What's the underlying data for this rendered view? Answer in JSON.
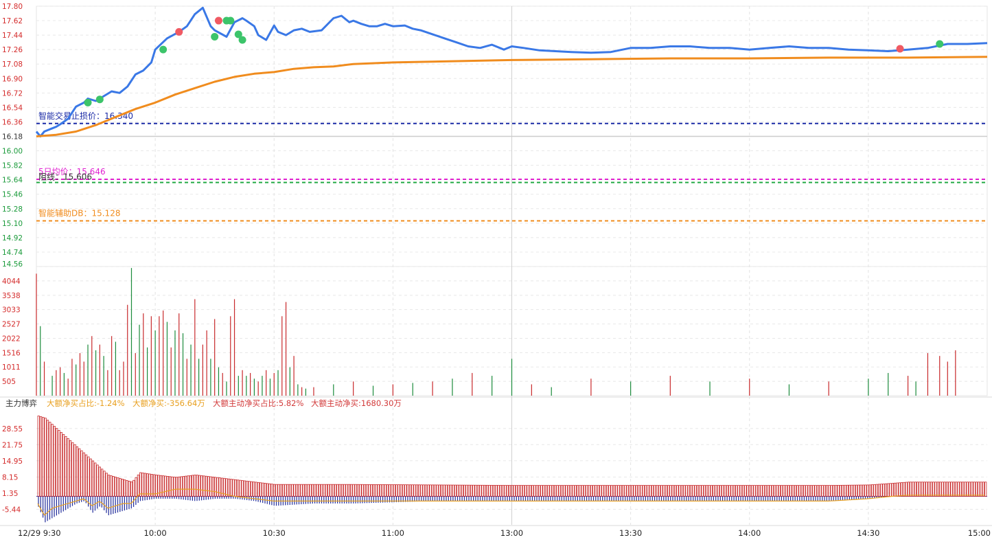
{
  "chart_data": [
    {
      "type": "line",
      "panel": "price",
      "ylim": [
        14.56,
        17.8
      ],
      "price_ticks": [
        "17.80",
        "17.62",
        "17.44",
        "17.26",
        "17.08",
        "16.90",
        "16.72",
        "16.54",
        "16.36",
        "16.18",
        "16.00",
        "15.82",
        "15.64",
        "15.46",
        "15.28",
        "15.10",
        "14.92",
        "14.74",
        "14.56"
      ],
      "prev_close": 16.18,
      "x_ticks": [
        "12/29 9:30",
        "10:00",
        "10:30",
        "11:00",
        "13:00",
        "13:30",
        "14:00",
        "14:30",
        "15:00"
      ],
      "series": [
        {
          "color": "#3a78e6",
          "x": [
            0,
            1,
            2,
            3,
            4,
            5,
            6,
            8,
            10,
            12,
            13,
            15,
            17,
            19,
            21,
            23,
            25,
            27,
            29,
            30,
            33,
            36,
            38,
            40,
            42,
            44,
            45,
            48,
            50,
            52,
            53,
            55,
            56,
            58,
            60,
            61,
            63,
            65,
            67,
            69,
            72,
            75,
            77,
            79,
            80,
            82,
            84,
            86,
            88,
            90,
            93,
            95,
            97,
            100,
            103,
            106,
            109,
            112,
            115,
            118,
            120,
            123,
            127,
            131,
            135,
            140,
            145,
            150,
            155,
            160,
            165,
            170,
            175,
            180,
            185,
            190,
            195,
            200,
            205,
            210,
            215,
            220,
            225,
            230,
            235,
            240
          ],
          "values": [
            16.24,
            16.18,
            16.24,
            16.26,
            16.28,
            16.3,
            16.33,
            16.4,
            16.55,
            16.6,
            16.65,
            16.62,
            16.68,
            16.74,
            16.72,
            16.8,
            16.95,
            17.0,
            17.1,
            17.26,
            17.4,
            17.48,
            17.55,
            17.7,
            17.78,
            17.55,
            17.5,
            17.42,
            17.6,
            17.65,
            17.62,
            17.55,
            17.44,
            17.38,
            17.56,
            17.48,
            17.44,
            17.5,
            17.52,
            17.48,
            17.5,
            17.65,
            17.68,
            17.6,
            17.62,
            17.58,
            17.55,
            17.55,
            17.58,
            17.55,
            17.56,
            17.52,
            17.5,
            17.45,
            17.4,
            17.35,
            17.3,
            17.28,
            17.32,
            17.26,
            17.3,
            17.28,
            17.25,
            17.24,
            17.23,
            17.22,
            17.23,
            17.28,
            17.28,
            17.3,
            17.3,
            17.28,
            17.28,
            17.26,
            17.28,
            17.3,
            17.28,
            17.28,
            17.26,
            17.25,
            17.24,
            17.26,
            17.28,
            17.33,
            17.33,
            17.34
          ]
        },
        {
          "color": "#f08c1e",
          "x": [
            0,
            5,
            10,
            15,
            20,
            25,
            30,
            35,
            40,
            45,
            50,
            55,
            60,
            65,
            70,
            75,
            80,
            90,
            100,
            120,
            140,
            160,
            180,
            200,
            220,
            240
          ],
          "values": [
            16.18,
            16.2,
            16.24,
            16.32,
            16.42,
            16.52,
            16.6,
            16.7,
            16.78,
            16.86,
            16.92,
            16.96,
            16.98,
            17.02,
            17.04,
            17.05,
            17.08,
            17.1,
            17.11,
            17.13,
            17.14,
            17.15,
            17.15,
            17.16,
            17.16,
            17.17
          ]
        }
      ],
      "signals": [
        {
          "x": 13,
          "v": 16.6,
          "kind": "buy"
        },
        {
          "x": 16,
          "v": 16.64,
          "kind": "buy"
        },
        {
          "x": 32,
          "v": 17.26,
          "kind": "buy"
        },
        {
          "x": 36,
          "v": 17.48,
          "kind": "sell"
        },
        {
          "x": 45,
          "v": 17.42,
          "kind": "buy"
        },
        {
          "x": 46,
          "v": 17.62,
          "kind": "sell"
        },
        {
          "x": 48,
          "v": 17.62,
          "kind": "buy"
        },
        {
          "x": 49,
          "v": 17.62,
          "kind": "buy"
        },
        {
          "x": 51,
          "v": 17.45,
          "kind": "buy"
        },
        {
          "x": 52,
          "v": 17.38,
          "kind": "buy"
        },
        {
          "x": 218,
          "v": 17.27,
          "kind": "sell"
        },
        {
          "x": 228,
          "v": 17.33,
          "kind": "buy"
        }
      ],
      "ref_lines": [
        {
          "label": "智能交易止损价：16.340",
          "value": 16.34,
          "color": "#1a2aa6",
          "text_color": "#1a2aa6"
        },
        {
          "label": "5日均价：15.646",
          "value": 15.646,
          "color": "#e020d0",
          "text_color": "#e020d0"
        },
        {
          "label": "阻线：15.606",
          "value": 15.606,
          "color": "#22aa44",
          "text_color": "#333333"
        },
        {
          "label": "智能辅助DB：15.128",
          "value": 15.128,
          "color": "#f08c1e",
          "text_color": "#f08c1e"
        }
      ]
    },
    {
      "type": "bar",
      "panel": "volume",
      "ylim": [
        0,
        4550
      ],
      "volume_ticks": [
        "4044",
        "3538",
        "3033",
        "2527",
        "2022",
        "1516",
        "1011",
        "505"
      ],
      "x": [
        0,
        1,
        2,
        4,
        5,
        6,
        7,
        8,
        9,
        10,
        11,
        12,
        13,
        14,
        15,
        16,
        17,
        18,
        19,
        20,
        21,
        22,
        23,
        24,
        25,
        26,
        27,
        28,
        29,
        30,
        31,
        32,
        33,
        34,
        35,
        36,
        37,
        38,
        39,
        40,
        41,
        42,
        43,
        44,
        45,
        46,
        47,
        48,
        49,
        50,
        51,
        52,
        53,
        54,
        55,
        56,
        57,
        58,
        59,
        60,
        61,
        62,
        63,
        64,
        65,
        66,
        67,
        68,
        70,
        75,
        80,
        85,
        90,
        95,
        100,
        105,
        110,
        115,
        120,
        125,
        130,
        140,
        150,
        160,
        170,
        180,
        190,
        200,
        210,
        215,
        220,
        222,
        225,
        228,
        230,
        232
      ],
      "values": [
        4300,
        2450,
        1200,
        700,
        900,
        1000,
        800,
        600,
        1300,
        1100,
        1500,
        1200,
        1800,
        2100,
        1600,
        1800,
        1400,
        900,
        2100,
        1900,
        900,
        1200,
        3200,
        4500,
        1500,
        2500,
        2900,
        1700,
        2800,
        2300,
        2800,
        3000,
        2600,
        1700,
        2300,
        2900,
        2200,
        1300,
        1800,
        3400,
        1300,
        1800,
        2300,
        1300,
        2700,
        1000,
        800,
        500,
        2800,
        3400,
        700,
        900,
        700,
        800,
        600,
        500,
        700,
        900,
        600,
        800,
        900,
        2800,
        3300,
        1000,
        1400,
        400,
        300,
        250,
        300,
        400,
        500,
        350,
        400,
        450,
        500,
        600,
        800,
        700,
        1300,
        400,
        300,
        600,
        500,
        700,
        500,
        600,
        400,
        500,
        600,
        800,
        700,
        500,
        1500,
        1400,
        1200,
        1600
      ],
      "colors": [
        "r",
        "g",
        "r",
        "g",
        "r",
        "r",
        "g",
        "r",
        "r",
        "g",
        "r",
        "r",
        "g",
        "r",
        "g",
        "r",
        "g",
        "r",
        "r",
        "g",
        "r",
        "r",
        "r",
        "g",
        "r",
        "g",
        "r",
        "g",
        "r",
        "g",
        "r",
        "r",
        "g",
        "r",
        "g",
        "r",
        "g",
        "r",
        "g",
        "r",
        "g",
        "r",
        "r",
        "g",
        "r",
        "g",
        "r",
        "g",
        "r",
        "r",
        "g",
        "r",
        "g",
        "r",
        "g",
        "r",
        "g",
        "r",
        "g",
        "r",
        "g",
        "r",
        "r",
        "g",
        "r",
        "g",
        "r",
        "g",
        "r",
        "g",
        "r",
        "g",
        "r",
        "g",
        "r",
        "g",
        "r",
        "g",
        "g",
        "r",
        "g",
        "r",
        "g",
        "r",
        "g",
        "r",
        "g",
        "r",
        "g",
        "g",
        "r",
        "g",
        "r",
        "r",
        "r",
        "r"
      ]
    },
    {
      "type": "bar",
      "panel": "main-force",
      "title": "主力博弈",
      "stats": [
        {
          "text": "大额净买占比:-1.24%",
          "color": "#e8a020"
        },
        {
          "text": "大额净买:-356.64万",
          "color": "#e8a020"
        },
        {
          "text": "大额主动净买占比:5.82%",
          "color": "#d23a3a"
        },
        {
          "text": "大额主动净买:1680.30万",
          "color": "#d23a3a"
        }
      ],
      "ylim": [
        -12,
        36
      ],
      "mf_ticks": [
        "28.55",
        "21.75",
        "14.95",
        "8.15",
        "1.35",
        "-5.44"
      ],
      "red_series": {
        "x": [
          0,
          2,
          4,
          6,
          8,
          10,
          12,
          14,
          16,
          18,
          20,
          22,
          24,
          26,
          30,
          35,
          40,
          45,
          50,
          55,
          60,
          70,
          80,
          100,
          120,
          140,
          160,
          180,
          200,
          210,
          216,
          220,
          230,
          240
        ],
        "values": [
          34,
          33,
          30,
          27,
          24,
          21,
          18,
          15,
          12,
          9,
          8,
          7,
          6,
          10,
          9,
          8,
          9,
          8,
          7,
          6,
          5,
          5,
          5,
          4.8,
          4.6,
          4.6,
          4.6,
          4.6,
          4.6,
          4.8,
          5.5,
          6.0,
          6.0,
          6.0
        ]
      },
      "blue_series": {
        "x": [
          0,
          2,
          4,
          6,
          8,
          10,
          12,
          14,
          16,
          18,
          20,
          22,
          24,
          26,
          30,
          35,
          40,
          45,
          50,
          55,
          60,
          70,
          80,
          100,
          120,
          140,
          160,
          180,
          200,
          210,
          216,
          220,
          230,
          240
        ],
        "values": [
          -3,
          -11,
          -9,
          -7,
          -5,
          -3,
          -2,
          -7,
          -4,
          -8,
          -7,
          -6,
          -5,
          -2,
          -1,
          -1,
          -2,
          -1,
          -1,
          -2,
          -4,
          -3,
          -3,
          -2,
          -2,
          -2,
          -2,
          -2,
          -2,
          -1,
          0,
          0,
          0,
          0
        ]
      },
      "yellow_series": {
        "x": [
          0,
          2,
          4,
          6,
          8,
          10,
          12,
          14,
          16,
          18,
          20,
          22,
          24,
          26,
          30,
          35,
          40,
          45,
          50,
          55,
          60,
          70,
          80,
          100,
          120,
          140,
          160,
          180,
          200,
          210,
          216,
          220,
          230,
          240
        ],
        "values": [
          -2,
          -8,
          -5,
          -4,
          -3,
          -2,
          -1,
          -4,
          -2,
          -5,
          -4,
          -3,
          -3,
          1,
          1,
          3,
          3,
          2,
          0,
          -1,
          -2,
          -2,
          -2,
          -2,
          -2,
          -2,
          -2,
          -2,
          -2,
          -1,
          0,
          0.5,
          0.5,
          0.5
        ]
      }
    }
  ]
}
